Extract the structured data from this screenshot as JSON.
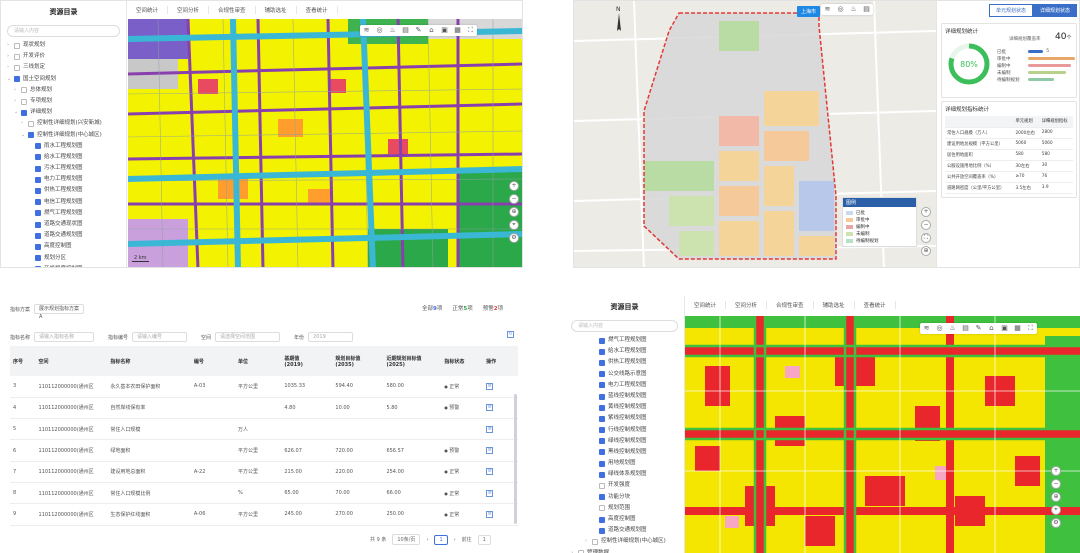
{
  "q1": {
    "sidebar_title": "资源目录",
    "search_placeholder": "请输入内容",
    "tree": [
      {
        "label": "现状规划",
        "depth": 0,
        "checked": false,
        "caret": "›"
      },
      {
        "label": "开发评价",
        "depth": 0,
        "checked": false,
        "caret": "›"
      },
      {
        "label": "三线划定",
        "depth": 0,
        "checked": false,
        "caret": "›"
      },
      {
        "label": "国土空间规划",
        "depth": 0,
        "checked": true,
        "caret": "⌄"
      },
      {
        "label": "总体规划",
        "depth": 1,
        "checked": false,
        "caret": "›"
      },
      {
        "label": "专项规划",
        "depth": 1,
        "checked": false,
        "caret": "›"
      },
      {
        "label": "详细规划",
        "depth": 1,
        "checked": true,
        "caret": "⌄"
      },
      {
        "label": "控制性详细规划(兴安新城)",
        "depth": 2,
        "checked": false,
        "caret": "›"
      },
      {
        "label": "控制性详细规划(中心城区)",
        "depth": 2,
        "checked": true,
        "caret": "⌄"
      },
      {
        "label": "雨水工程规划图",
        "depth": 3,
        "checked": true,
        "caret": ""
      },
      {
        "label": "给水工程规划图",
        "depth": 3,
        "checked": true,
        "caret": ""
      },
      {
        "label": "污水工程规划图",
        "depth": 3,
        "checked": true,
        "caret": ""
      },
      {
        "label": "电力工程规划图",
        "depth": 3,
        "checked": true,
        "caret": ""
      },
      {
        "label": "供热工程规划图",
        "depth": 3,
        "checked": true,
        "caret": ""
      },
      {
        "label": "电信工程规划图",
        "depth": 3,
        "checked": true,
        "caret": ""
      },
      {
        "label": "燃气工程规划图",
        "depth": 3,
        "checked": true,
        "caret": ""
      },
      {
        "label": "道路交通现状图",
        "depth": 3,
        "checked": true,
        "caret": ""
      },
      {
        "label": "道路交通规划图",
        "depth": 3,
        "checked": true,
        "caret": ""
      },
      {
        "label": "高度控制图",
        "depth": 3,
        "checked": true,
        "caret": ""
      },
      {
        "label": "规划分区",
        "depth": 3,
        "checked": true,
        "caret": ""
      },
      {
        "label": "开发强度控制图",
        "depth": 3,
        "checked": true,
        "caret": ""
      }
    ],
    "tabs": [
      "空间统计",
      "空间分析",
      "合规性审查",
      "辅助选址",
      "查看统计"
    ],
    "scale": "2 km"
  },
  "q2": {
    "toolbar_tag": "上海市",
    "right_tabs": [
      "单元规划状态",
      "详细规划状态"
    ],
    "stats_title": "详细规划统计",
    "stats_label": "详细规划覆盖率",
    "stats_value": "40",
    "stats_unit": "个",
    "percent": "80%",
    "percent_value": 80,
    "kv": [
      {
        "label": "已批",
        "value": "5",
        "color": "#3b6fc7",
        "width": 18
      },
      {
        "label": "审批中",
        "value": "",
        "color": "#e8a66a",
        "width": 55
      },
      {
        "label": "编制中",
        "value": "",
        "color": "#e89a9a",
        "width": 50
      },
      {
        "label": "未编制",
        "value": "",
        "color": "#b7d08a",
        "width": 45
      },
      {
        "label": "待编制规划",
        "value": "",
        "color": "#8fc9a6",
        "width": 30
      }
    ],
    "table_title": "详细规划指标统计",
    "table_head": [
      "",
      "单元规划",
      "详细规划指标"
    ],
    "table_rows": [
      [
        "常住人口规模（万人）",
        "2000左右",
        "2800"
      ],
      [
        "建设用地总规模（平方公里）",
        "5060",
        "5060"
      ],
      [
        "居住用地面积",
        "580",
        "580"
      ],
      [
        "公服设施用地比例（%）",
        "30左右",
        "30"
      ],
      [
        "公共开放空间覆盖率（%）",
        "≥70",
        "76"
      ],
      [
        "道路网密度（公里/平方公里）",
        "3.5左右",
        "3.9"
      ]
    ],
    "row_flags": [
      "dr",
      "dg",
      "dg",
      "dg",
      "dg",
      "dg"
    ],
    "legend_title": "图例",
    "legend": [
      {
        "label": "已批",
        "color": "#c9d9f0"
      },
      {
        "label": "审批中",
        "color": "#f5c99a"
      },
      {
        "label": "编制中",
        "color": "#e8a7a7"
      },
      {
        "label": "未编制",
        "color": "#cce3b0"
      },
      {
        "label": "待编制规划",
        "color": "#b8e0c6"
      }
    ]
  },
  "q3": {
    "scheme_label": "指标方案",
    "scheme_value": "展示规划指标方案A",
    "badges": [
      {
        "label": "全部",
        "count": "9",
        "unit": "项",
        "color": "#3f6fe0"
      },
      {
        "label": "正常",
        "count": "5",
        "unit": "项",
        "color": "#2e9e4a"
      },
      {
        "label": "预警",
        "count": "2",
        "unit": "项",
        "color": "#e53935"
      }
    ],
    "filters": [
      {
        "label": "指标名称",
        "placeholder": "请输入指标名称"
      },
      {
        "label": "指标编号",
        "placeholder": "请输入编号"
      },
      {
        "label": "空间",
        "placeholder": "请选择空间范围"
      },
      {
        "label": "年份",
        "placeholder": "2019"
      }
    ],
    "columns": [
      "序号",
      "空间",
      "指标名称",
      "编号",
      "单位",
      "基期值\n(2019)",
      "规划目标值\n(2035)",
      "近期规划目标值\n(2025)",
      "指标状态",
      "操作"
    ],
    "rows": [
      [
        "3",
        "110112000000(通州区",
        "永久基本农田保护面积",
        "A-03",
        "平方公里",
        "1035.33",
        "594.40",
        "580.00",
        "正常"
      ],
      [
        "4",
        "110112000000(通州区",
        "自然岸线保有率",
        "",
        "",
        "4.80",
        "10.00",
        "5.80",
        "预警"
      ],
      [
        "5",
        "110112000000(通州区",
        "常住人口规模",
        "",
        "万人",
        "",
        "",
        "",
        ""
      ],
      [
        "6",
        "110112000000(通州区",
        "绿地面积",
        "",
        "平方公里",
        "626.07",
        "720.00",
        "656.57",
        "预警"
      ],
      [
        "7",
        "110112000000(通州区",
        "建设用地总面积",
        "A-22",
        "平方公里",
        "215.00",
        "220.00",
        "254.00",
        "正常"
      ],
      [
        "8",
        "110112000000(通州区",
        "常住人口规模比例",
        "",
        "%",
        "65.00",
        "70.00",
        "66.00",
        "正常"
      ],
      [
        "9",
        "110112000000(通州区",
        "生态保护红线面积",
        "A-06",
        "平方公里",
        "245.00",
        "270.00",
        "250.00",
        "正常"
      ]
    ],
    "pager": {
      "total": "共 9 条",
      "size": "10条/页",
      "prev": "‹",
      "page": "1",
      "next": "›",
      "goto": "前往",
      "goto_page": "1"
    }
  },
  "q4": {
    "sidebar_title": "资源目录",
    "search_placeholder": "请输入内容",
    "tree": [
      {
        "label": "燃气工程规划图",
        "depth": 3,
        "checked": true,
        "caret": ""
      },
      {
        "label": "给水工程规划图",
        "depth": 3,
        "checked": true,
        "caret": ""
      },
      {
        "label": "供热工程规划图",
        "depth": 3,
        "checked": true,
        "caret": ""
      },
      {
        "label": "公交线路示意图",
        "depth": 3,
        "checked": true,
        "caret": ""
      },
      {
        "label": "电力工程规划图",
        "depth": 3,
        "checked": true,
        "caret": ""
      },
      {
        "label": "蓝线控制规划图",
        "depth": 3,
        "checked": true,
        "caret": ""
      },
      {
        "label": "黄线控制规划图",
        "depth": 3,
        "checked": true,
        "caret": ""
      },
      {
        "label": "紫线控制规划图",
        "depth": 3,
        "checked": true,
        "caret": ""
      },
      {
        "label": "行线控制规划图",
        "depth": 3,
        "checked": true,
        "caret": ""
      },
      {
        "label": "绿线控制规划图",
        "depth": 3,
        "checked": true,
        "caret": ""
      },
      {
        "label": "黑线控制规划图",
        "depth": 3,
        "checked": true,
        "caret": ""
      },
      {
        "label": "用地规划图",
        "depth": 3,
        "checked": true,
        "caret": ""
      },
      {
        "label": "绿线体系规划图",
        "depth": 3,
        "checked": true,
        "caret": ""
      },
      {
        "label": "开发强度",
        "depth": 3,
        "checked": false,
        "caret": ""
      },
      {
        "label": "功能分块",
        "depth": 3,
        "checked": true,
        "caret": ""
      },
      {
        "label": "规划范围",
        "depth": 3,
        "checked": false,
        "caret": ""
      },
      {
        "label": "高度控制图",
        "depth": 3,
        "checked": true,
        "caret": ""
      },
      {
        "label": "道路交通规划图",
        "depth": 3,
        "checked": true,
        "caret": ""
      },
      {
        "label": "控制性详细规划(中心城区)",
        "depth": 2,
        "checked": false,
        "caret": "›"
      },
      {
        "label": "管理数据",
        "depth": 0,
        "checked": false,
        "caret": "›"
      },
      {
        "label": "社会经济数据",
        "depth": 0,
        "checked": false,
        "caret": "›"
      }
    ],
    "tabs": [
      "空间统计",
      "空间分析",
      "合规性审查",
      "辅助选址",
      "查看统计"
    ]
  },
  "tool_icons": [
    "layers-icon",
    "target-icon",
    "paint-icon",
    "book-icon",
    "edit-icon",
    "building-icon",
    "print-icon",
    "bag-icon",
    "fullscreen-icon"
  ],
  "tool_glyphs": [
    "≋",
    "◎",
    "♨",
    "▤",
    "✎",
    "⌂",
    "▣",
    "▦",
    "⛶"
  ]
}
